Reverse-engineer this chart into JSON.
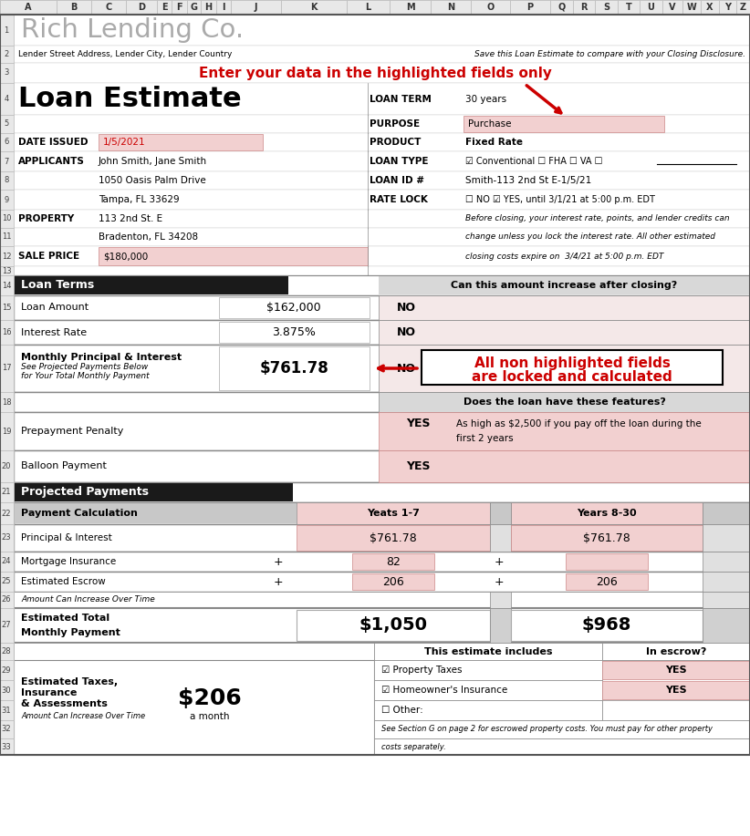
{
  "title_company": "Rich Lending Co.",
  "row2_left": "Lender Street Address, Lender City, Lender Country",
  "row2_right": "Save this Loan Estimate to compare with your Closing Disclosure.",
  "row3_center": "Enter your data in the highlighted fields only",
  "loan_estimate_title": "Loan Estimate",
  "loan_term_label": "LOAN TERM",
  "loan_term_value": "30 years",
  "purpose_label": "PURPOSE",
  "purpose_value": "Purchase",
  "product_label": "PRODUCT",
  "product_value": "Fixed Rate",
  "date_issued_label": "DATE ISSUED",
  "date_issued_value": "1/5/2021",
  "loan_type_label": "LOAN TYPE",
  "loan_id_label": "LOAN ID #",
  "loan_id_value": "Smith-113 2nd St E-1/5/21",
  "rate_lock_label": "RATE LOCK",
  "rate_lock_text": "YES, until 3/1/21 at 5:00 p.m. EDT",
  "applicants_label": "APPLICANTS",
  "applicants_line1": "John Smith, Jane Smith",
  "applicants_line2": "1050 Oasis Palm Drive",
  "applicants_line3": "Tampa, FL 33629",
  "property_label": "PROPERTY",
  "property_line1": "113 2nd St. E",
  "property_line2": "Bradenton, FL 34208",
  "sale_price_label": "SALE PRICE",
  "sale_price_value": "$180,000",
  "loan_terms_header": "Loan Terms",
  "can_increase_header": "Can this amount increase after closing?",
  "loan_amount_label": "Loan Amount",
  "loan_amount_value": "$162,000",
  "loan_amount_answer": "NO",
  "interest_rate_label": "Interest Rate",
  "interest_rate_value": "3.875%",
  "interest_rate_answer": "NO",
  "monthly_pi_label": "Monthly Principal & Interest",
  "monthly_pi_value": "$761.78",
  "monthly_pi_answer": "NO",
  "features_header": "Does the loan have these features?",
  "prepayment_label": "Prepayment Penalty",
  "prepayment_answer": "YES",
  "prepayment_detail1": "As high as $2,500 if you pay off the loan during the",
  "prepayment_detail2": "first 2 years",
  "balloon_label": "Balloon Payment",
  "balloon_answer": "YES",
  "projected_payments_header": "Projected Payments",
  "payment_calc_label": "Payment Calculation",
  "years1_header": "Yeats 1-7",
  "years2_header": "Years 8-30",
  "pi_label": "Principal & Interest",
  "pi_value1": "$761.78",
  "pi_value2": "$761.78",
  "mi_label": "Mortgage Insurance",
  "mi_value1": "82",
  "escrow_label": "Estimated Escrow",
  "escrow_value1": "206",
  "escrow_value2": "206",
  "amount_increase_note": "Amount Can Increase Over Time",
  "est_total_label1": "Estimated Total",
  "est_total_label2": "Monthly Payment",
  "est_total_value1": "$1,050",
  "est_total_value2": "$968",
  "this_estimate_header": "This estimate includes",
  "in_escrow_header": "In escrow?",
  "prop_tax_label": "Property Taxes",
  "prop_tax_answer": "YES",
  "homeowner_label": "Homeowner's Insurance",
  "homeowner_answer": "YES",
  "other_label": "Other:",
  "escrow_note1": "See Section G on page 2 for escrowed property costs. You must pay for other property",
  "escrow_note2": "costs separately.",
  "est_taxes_label1": "Estimated Taxes,",
  "est_taxes_label2": "Insurance",
  "est_taxes_label3": "& Assessments",
  "est_taxes_sub": "Amount Can Increase Over Time",
  "est_taxes_dollar": "$206",
  "est_taxes_period": "a month",
  "annotation1": "All non highlighted fields",
  "annotation2": "are locked and calculated",
  "highlight_color": "#f2d0d0",
  "red_color": "#cc0000",
  "col_labels": [
    "A",
    "B",
    "C",
    "D",
    "E",
    "F",
    "G",
    "H",
    "I",
    "J",
    "K",
    "L",
    "M",
    "N",
    "O",
    "P",
    "Q",
    "R",
    "S",
    "T",
    "U",
    "V",
    "W",
    "X",
    "Y",
    "Z"
  ],
  "col_rights": [
    62,
    100,
    138,
    172,
    188,
    205,
    220,
    237,
    253,
    308,
    380,
    427,
    472,
    516,
    559,
    603,
    628,
    652,
    677,
    701,
    726,
    748,
    768,
    788,
    807,
    822
  ]
}
